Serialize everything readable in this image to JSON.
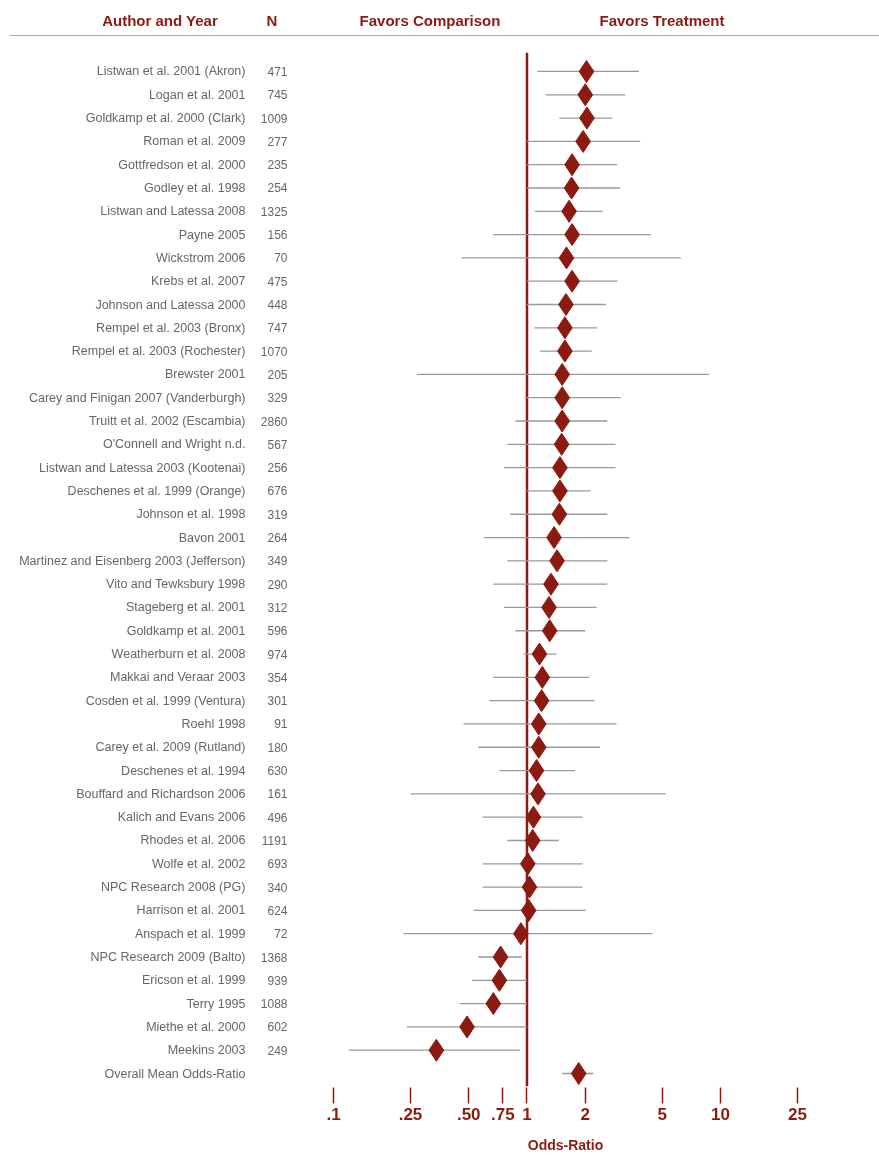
{
  "chart_data": {
    "type": "scatter",
    "orientation": "horizontal",
    "ylabel": "Author and Year",
    "y2label": "N",
    "xlabel": "Odds-Ratio",
    "categories": [
      "Listwan et al. 2001 (Akron)",
      "Logan et al. 2001",
      "Goldkamp et al. 2000 (Clark)",
      "Roman et al. 2009",
      "Gottfredson et al. 2000",
      "Godley et al. 1998",
      "Listwan and Latessa 2008",
      "Payne 2005",
      "Wickstrom 2006",
      "Krebs et al. 2007",
      "Johnson and Latessa 2000",
      "Rempel et al. 2003 (Bronx)",
      "Rempel et al. 2003 (Rochester)",
      "Brewster 2001",
      "Carey and Finigan 2007 (Vanderburgh)",
      "Truitt et al. 2002 (Escambia)",
      "O'Connell and Wright n.d.",
      "Listwan and Latessa 2003 (Kootenai)",
      "Deschenes et al. 1999 (Orange)",
      "Johnson et al. 1998",
      "Bavon 2001",
      "Martinez and Eisenberg 2003 (Jefferson)",
      "Vito and Tewksbury 1998",
      "Stageberg et al. 2001",
      "Goldkamp et al. 2001",
      "Weatherburn et al. 2008",
      "Makkai and Veraar 2003",
      "Cosden et al. 1999 (Ventura)",
      "Roehl 1998",
      "Carey et al. 2009 (Rutland)",
      "Deschenes et al. 1994",
      "Bouffard and Richardson 2006",
      "Kalich and Evans 2006",
      "Rhodes et al. 2006",
      "Wolfe et al. 2002",
      "NPC Research 2008 (PG)",
      "Harrison et al. 2001",
      "Anspach et al. 1999",
      "NPC Research 2009 (Balto)",
      "Ericson et al. 1999",
      "Terry 1995",
      "Miethe et al. 2000",
      "Meekins 2003",
      "Overall Mean Odds-Ratio"
    ],
    "y2_categories": [
      "471",
      "745",
      "1009",
      "277",
      "235",
      "254",
      "1325",
      "156",
      "70",
      "475",
      "448",
      "747",
      "1070",
      "205",
      "329",
      "2860",
      "567",
      "256",
      "676",
      "319",
      "264",
      "349",
      "290",
      "312",
      "596",
      "974",
      "354",
      "301",
      "91",
      "180",
      "630",
      "161",
      "496",
      "1191",
      "693",
      "340",
      "624",
      "72",
      "1368",
      "939",
      "1088",
      "602",
      "249",
      null
    ],
    "series": [
      {
        "color": "#8b1a10",
        "values": [
          2.03,
          2.0,
          2.04,
          1.95,
          1.71,
          1.7,
          1.65,
          1.71,
          1.6,
          1.71,
          1.59,
          1.57,
          1.57,
          1.52,
          1.52,
          1.52,
          1.51,
          1.48,
          1.48,
          1.47,
          1.38,
          1.43,
          1.33,
          1.3,
          1.31,
          1.16,
          1.2,
          1.19,
          1.15,
          1.15,
          1.12,
          1.14,
          1.08,
          1.07,
          1.01,
          1.03,
          1.02,
          0.93,
          0.73,
          0.72,
          0.67,
          0.49,
          0.34,
          1.85
        ],
        "errors": [
          [
            1.13,
            3.79
          ],
          [
            1.25,
            3.22
          ],
          [
            1.47,
            2.76
          ],
          [
            1.0,
            3.85
          ],
          [
            1.0,
            2.92
          ],
          [
            1.0,
            3.02
          ],
          [
            1.1,
            2.46
          ],
          [
            0.67,
            4.36
          ],
          [
            0.46,
            6.24
          ],
          [
            1.0,
            2.93
          ],
          [
            1.0,
            2.56
          ],
          [
            1.09,
            2.3
          ],
          [
            1.17,
            2.16
          ],
          [
            0.27,
            8.71
          ],
          [
            0.97,
            3.05
          ],
          [
            0.87,
            2.6
          ],
          [
            0.79,
            2.87
          ],
          [
            0.76,
            2.87
          ],
          [
            1.0,
            2.13
          ],
          [
            0.82,
            2.6
          ],
          [
            0.6,
            3.39
          ],
          [
            0.79,
            2.6
          ],
          [
            0.67,
            2.6
          ],
          [
            0.76,
            2.29
          ],
          [
            0.87,
            2.0
          ],
          [
            0.96,
            1.42
          ],
          [
            0.67,
            2.1
          ],
          [
            0.64,
            2.23
          ],
          [
            0.47,
            2.9
          ],
          [
            0.56,
            2.38
          ],
          [
            0.72,
            1.77
          ],
          [
            0.25,
            5.21
          ],
          [
            0.59,
            1.94
          ],
          [
            0.79,
            1.46
          ],
          [
            0.59,
            1.94
          ],
          [
            0.59,
            1.94
          ],
          [
            0.53,
            2.01
          ],
          [
            0.23,
            4.45
          ],
          [
            0.56,
            0.94
          ],
          [
            0.52,
            1.0
          ],
          [
            0.45,
            1.0
          ],
          [
            0.24,
            1.0
          ],
          [
            0.12,
            0.92
          ],
          [
            1.52,
            2.2
          ]
        ]
      }
    ],
    "xlim": [
      0.1,
      25
    ],
    "log": "x",
    "xticks": [
      {
        "value": 0.1,
        "label": ".1"
      },
      {
        "value": 0.25,
        "label": ".25"
      },
      {
        "value": 0.5,
        "label": ".50"
      },
      {
        "value": 0.75,
        "label": ".75"
      },
      1,
      2,
      5,
      10,
      25
    ],
    "marker": "diamond",
    "ref_lines": [
      {
        "axis": "x",
        "value": 1,
        "color": "#8b1a10"
      }
    ],
    "annotations": [
      "Favors Comparison",
      "Favors Treatment"
    ]
  }
}
